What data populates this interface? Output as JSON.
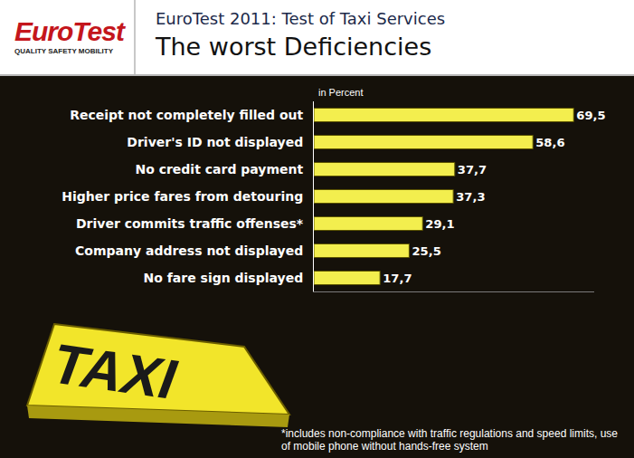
{
  "chart_data": {
    "type": "bar",
    "orientation": "horizontal",
    "title": "EuroTest 2011: Test of Taxi Services",
    "subtitle": "The worst Deficiencies",
    "logo": "EuroTest",
    "logo_tagline": "QUALITY SAFETY MOBILITY",
    "xlabel": "in Percent",
    "sign_text": "TAXI",
    "footnote": "*includes non-compliance with traffic regulations and speed limits, use of mobile phone without hands-free system",
    "categories": [
      "Receipt not completely filled out",
      "Driver's ID not displayed",
      "No credit card payment",
      "Higher price fares from detouring",
      "Driver commits traffic offenses*",
      "Company address not displayed",
      "No fare sign displayed"
    ],
    "values": [
      69.5,
      58.6,
      37.7,
      37.3,
      29.1,
      25.5,
      17.7
    ],
    "value_labels": [
      "69,5",
      "58,6",
      "37,7",
      "37,3",
      "29,1",
      "25,5",
      "17,7"
    ],
    "color": "#f3ee4e",
    "xlim": [
      0,
      75
    ],
    "data_labels": true,
    "tick_labels": "y",
    "grid": false
  }
}
